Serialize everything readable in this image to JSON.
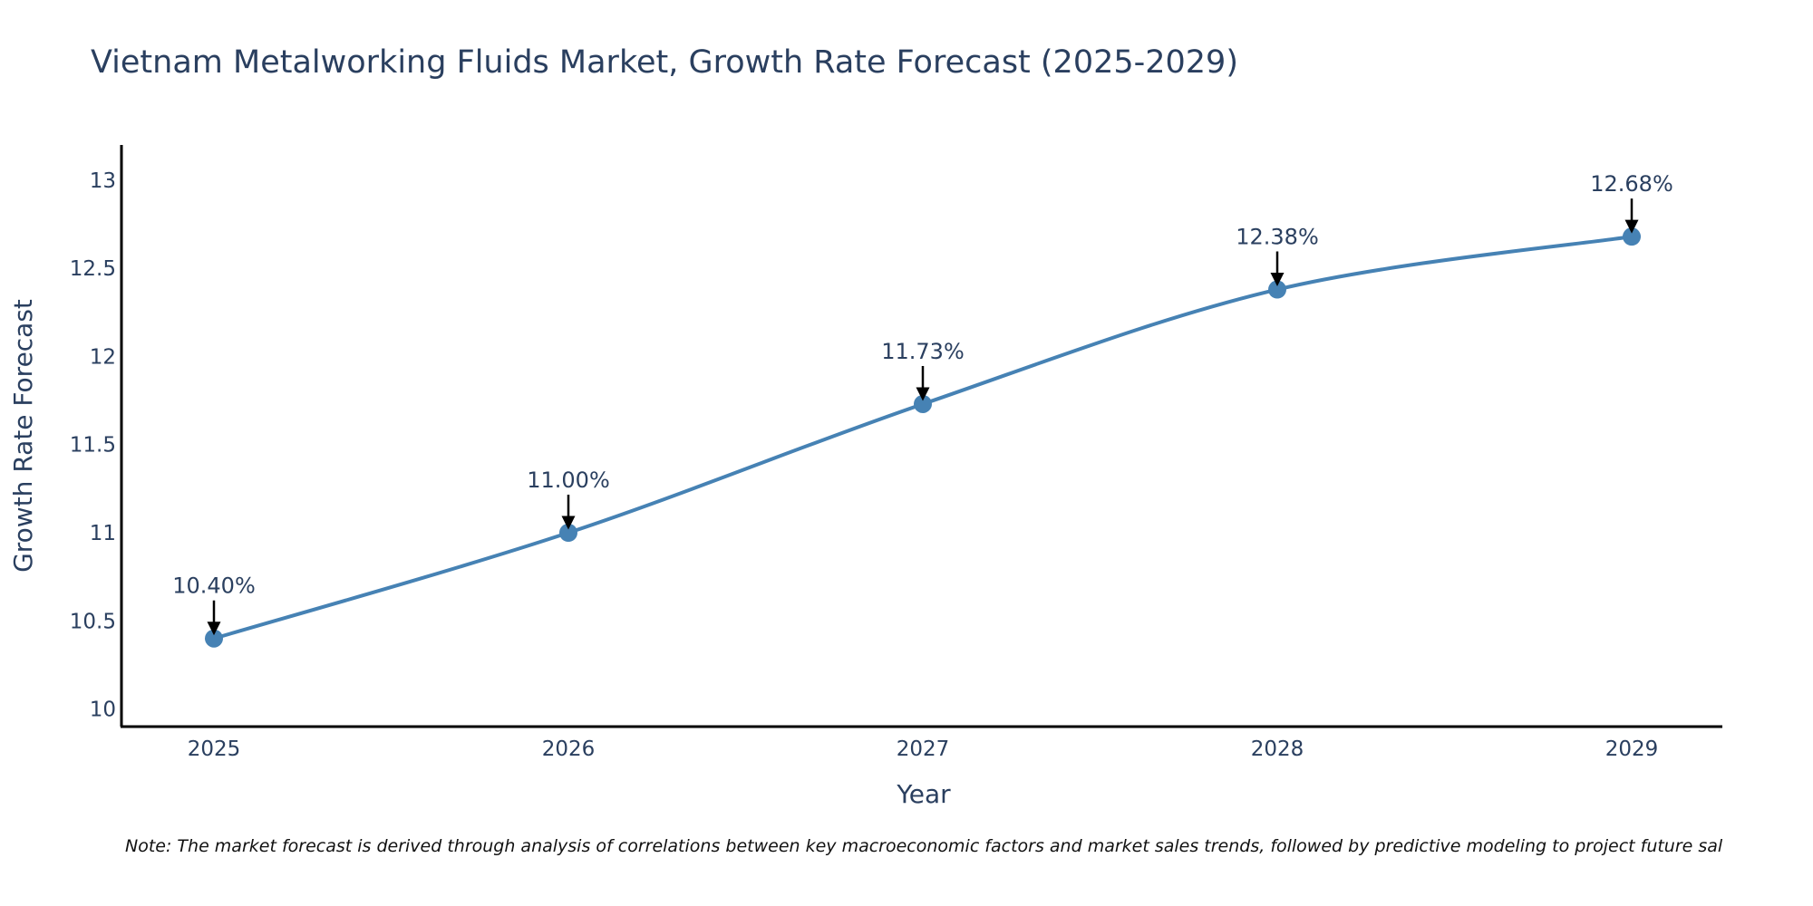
{
  "chart_data": {
    "type": "line",
    "title": "Vietnam Metalworking Fluids Market, Growth Rate Forecast (2025-2029)",
    "xlabel": "Year",
    "ylabel": "Growth Rate Forecast",
    "categories": [
      "2025",
      "2026",
      "2027",
      "2028",
      "2029"
    ],
    "values": [
      10.4,
      11.0,
      11.73,
      12.38,
      12.68
    ],
    "data_labels": [
      "10.40%",
      "11.00%",
      "11.73%",
      "12.38%",
      "12.68%"
    ],
    "ylim": [
      9.9,
      13.2
    ],
    "yticks": [
      10,
      10.5,
      11,
      11.5,
      12,
      12.5,
      13
    ],
    "ytick_labels": [
      "10",
      "10.5",
      "11",
      "11.5",
      "12",
      "12.5",
      "13"
    ],
    "grid": false,
    "line_shape": "spline",
    "line_color": "#4682b4",
    "annotation_arrow_color": "#000000"
  },
  "note": "Note: The market forecast is derived through analysis of correlations between key macroeconomic factors and market sales trends, followed by predictive modeling to project future sal"
}
